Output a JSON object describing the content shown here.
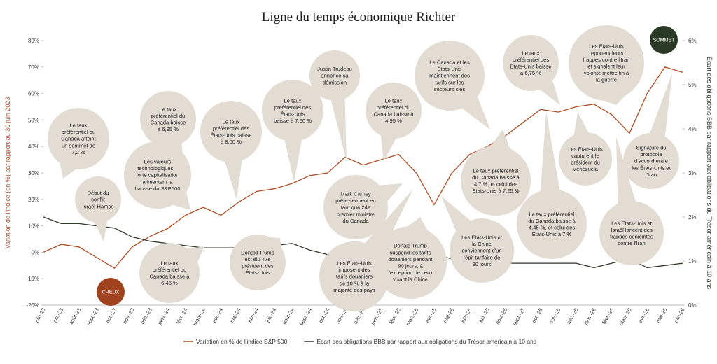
{
  "chart_data": {
    "type": "line",
    "title": "Ligne du temps économique Richter",
    "y_label": "Variation de l'indice (en %) par rapport au 30 juin 2023",
    "y2_label": "Écart des obligations BBB par rapport aux obligations du Trésor américain à 10 ans",
    "categories": [
      "juin-23",
      "juil.-23",
      "août-23",
      "sept.-23",
      "oct.-23",
      "nov.-23",
      "déc.-23",
      "janv.-24",
      "févr.-24",
      "mars-24",
      "avr.-24",
      "mai-24",
      "juin-24",
      "juil.-24",
      "août-24",
      "sept.-24",
      "oct.-24",
      "nov.-24",
      "déc.-24",
      "janv.-25",
      "févr.-25",
      "mars-25",
      "avr.-25",
      "mai-25",
      "juin-25",
      "juil.-25",
      "août-25",
      "sept.-25",
      "oct.-25",
      "nov.-25",
      "déc.-25",
      "janv.-26",
      "févr.-26",
      "mars-26",
      "avr.-26",
      "mai-26",
      "juin-26"
    ],
    "series": [
      {
        "name": "Variation en % de l'indice S&P 500",
        "color": "#b04e26",
        "values": [
          0,
          3,
          2,
          -2,
          -6,
          2,
          6,
          9,
          14,
          17,
          14,
          19,
          23,
          24,
          26,
          29,
          30,
          36,
          33,
          35,
          37,
          30,
          18,
          30,
          37,
          40,
          44,
          49,
          54,
          53,
          55,
          56,
          52,
          45,
          60,
          70,
          68
        ]
      },
      {
        "name": "Écart des obligations BBB par rapport aux obligations du Trésor américain à 10 ans",
        "color": "#2e3a28",
        "axis": "y2",
        "values": [
          2.0,
          1.85,
          1.85,
          1.8,
          1.75,
          1.55,
          1.45,
          1.4,
          1.35,
          1.3,
          1.3,
          1.3,
          1.33,
          1.35,
          1.4,
          1.25,
          1.15,
          1.1,
          1.05,
          1.05,
          1.05,
          1.05,
          1.15,
          1.05,
          1.0,
          0.95,
          0.95,
          0.95,
          0.95,
          0.95,
          0.95,
          0.85,
          0.95,
          1.05,
          0.85,
          0.9,
          0.95
        ]
      }
    ],
    "ylim": [
      -20,
      80
    ],
    "yticks": [
      {
        "value": -20,
        "label": "-20%"
      },
      {
        "value": -10,
        "label": "-10%"
      },
      {
        "value": 0,
        "label": "0%"
      },
      {
        "value": 10,
        "label": "10%"
      },
      {
        "value": 20,
        "label": "20%"
      },
      {
        "value": 30,
        "label": "30%"
      },
      {
        "value": 40,
        "label": "40%"
      },
      {
        "value": 50,
        "label": "50%"
      },
      {
        "value": 60,
        "label": "60%"
      },
      {
        "value": 70,
        "label": "70%"
      },
      {
        "value": 80,
        "label": "80%"
      }
    ],
    "y2lim": [
      0,
      6
    ],
    "y2ticks": [
      {
        "value": 0,
        "label": "0%"
      },
      {
        "value": 1,
        "label": "1%"
      },
      {
        "value": 2,
        "label": "2%"
      },
      {
        "value": 3,
        "label": "3%"
      },
      {
        "value": 4,
        "label": "4%"
      },
      {
        "value": 5,
        "label": "5%"
      },
      {
        "value": 6,
        "label": "6%"
      }
    ],
    "markers": [
      "CREUX",
      "SOMMET"
    ],
    "annotations": [
      [
        "Le taux",
        "préférentiel du",
        "Canada atteint",
        "un sommet de",
        "7,2 %"
      ],
      [
        "Début du",
        "conflit",
        "Israël-Hamas"
      ],
      [
        "Les valeurs",
        "technologiques à",
        "forte capitalisation",
        "alimentent la",
        "hausse du S&P500"
      ],
      [
        "Le taux",
        "préférentiel du",
        "Canada baisse",
        "à 6,95 %"
      ],
      [
        "Le taux",
        "préférentiel des",
        "États-Unis baisse",
        "à 8,00 %"
      ],
      [
        "Le taux",
        "préférentiel des",
        "États-Unis",
        "baisse à 7,50 %"
      ],
      [
        "Justin Trudeau",
        "annonce sa",
        "démission"
      ],
      [
        "Le taux",
        "préférentiel du",
        "Canada baisse à",
        "4,95 %"
      ],
      [
        "Mark Carney",
        "prête serment en",
        "tant que 24e",
        "premier ministre",
        "du Canada"
      ],
      [
        "Le Canada et les",
        "États-Unis",
        "maintiennent des",
        "tarifs sur les",
        "secteurs clés"
      ],
      [
        "Le taux",
        "préférentiel des",
        "États-Unis baisse",
        "à 6,75 %"
      ],
      [
        "Les États-Unis",
        "reportent leurs",
        "frappes contre l'Iran",
        "et signalent leur",
        "volonté mettre fin à",
        "la guerre"
      ],
      [
        "Les États-Unis",
        "capturent le",
        "président du",
        "Vénézuela"
      ],
      [
        "Signature du",
        "protocole",
        "d'accord entre",
        "les États-Unis et",
        "l'Iran"
      ],
      [
        "Le taux préférentiel",
        "du Canada baisse à",
        "4,7 %, et celui des",
        "États-Unis à 7,25 %"
      ],
      [
        "Le taux préférentiel",
        "du Canada baisse à",
        "4,45 %, et celui des",
        "États-Unis à 7 %"
      ],
      [
        "Les États-Unis et",
        "Israël lancent des",
        "frappes conjointes",
        "contre l'Iran"
      ],
      [
        "Les États-Unis et",
        "la Chine",
        "conviennent d'un",
        "répit tarifaire de",
        "90 jours"
      ],
      [
        "Donald Trump",
        "suspend les tarifs",
        "douaniers pendant",
        "90 jours, à",
        "l'exception de ceux",
        "visant la Chine"
      ],
      [
        "Les États-Unis",
        "imposent des",
        "tarifs douaniers",
        "de 10 % à la",
        "majorité des pays"
      ],
      [
        "Donald Trump",
        "est élu 47e",
        "président des",
        "États-Unis"
      ],
      [
        "Le taux",
        "préférentiel du",
        "Canada baisse à",
        "6,45 %"
      ]
    ]
  }
}
